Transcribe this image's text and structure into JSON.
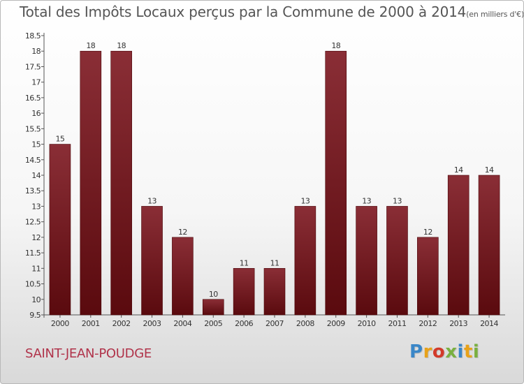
{
  "header": {
    "title": "Total des Impôts Locaux perçus par la Commune de 2000 à 2014",
    "unit": "(en milliers d'€)"
  },
  "footer": {
    "commune": "SAINT-JEAN-POUDGE",
    "logo_letters": [
      "P",
      "r",
      "o",
      "x",
      "i",
      "t",
      "i"
    ],
    "logo_colors": [
      "#3a87c8",
      "#e8a21a",
      "#d23a2a",
      "#7ab040",
      "#3a87c8",
      "#e8a21a",
      "#7ab040"
    ]
  },
  "chart_data": {
    "type": "bar",
    "title": "Total des Impôts Locaux perçus par la Commune de 2000 à 2014",
    "xlabel": "",
    "ylabel": "",
    "categories": [
      "2000",
      "2001",
      "2002",
      "2003",
      "2004",
      "2005",
      "2006",
      "2007",
      "2008",
      "2009",
      "2010",
      "2011",
      "2012",
      "2013",
      "2014"
    ],
    "values": [
      15,
      18,
      18,
      13,
      12,
      10,
      11,
      11,
      13,
      18,
      13,
      13,
      12,
      14,
      14
    ],
    "ylim": [
      9.5,
      18.5
    ],
    "yticks": [
      9.5,
      10,
      10.5,
      11,
      11.5,
      12,
      12.5,
      13,
      13.5,
      14,
      14.5,
      15,
      15.5,
      16,
      16.5,
      17,
      17.5,
      18,
      18.5
    ],
    "grid": false,
    "bar_color_top": "#8a2e36",
    "bar_color_bottom": "#5a0a0e"
  }
}
